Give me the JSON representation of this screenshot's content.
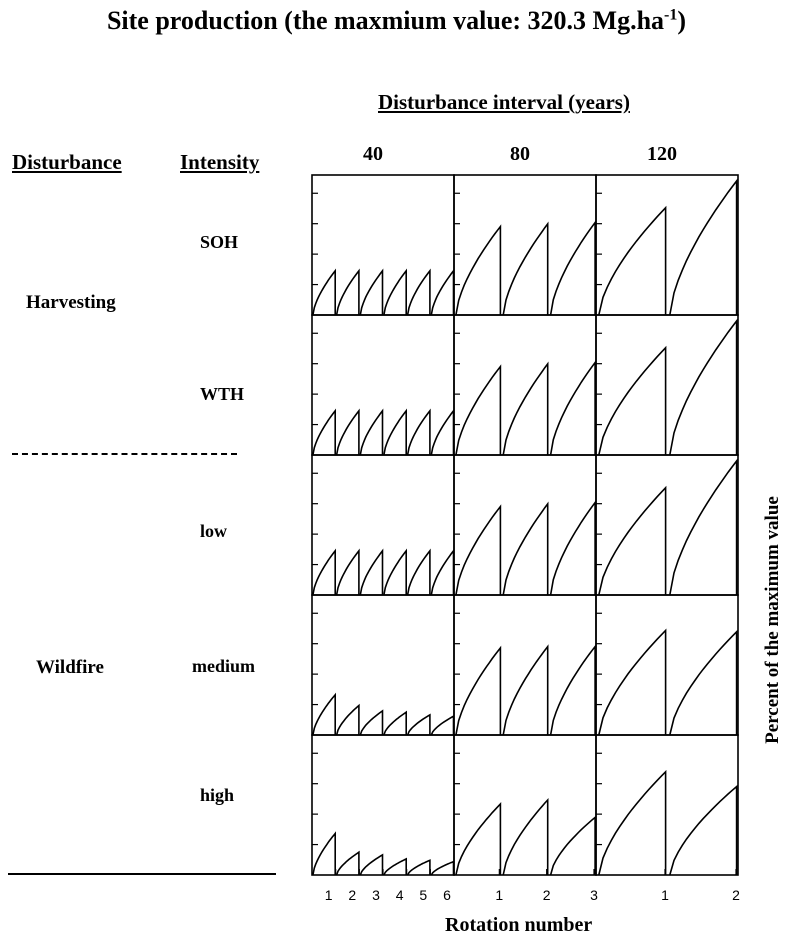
{
  "chart_data": {
    "type": "line",
    "title": "Site production (the maxmium value: 320.3 Mg.ha",
    "title_superscript": "-1",
    "column_header": "Disturbance interval (years)",
    "intervals": [
      "40",
      "80",
      "120"
    ],
    "xlabel": "Rotation number",
    "ylabel": "Percent of the maximum value",
    "row_header_disturbance": "Disturbance",
    "row_header_intensity": "Intensity",
    "disturbances": [
      "Harvesting",
      "Wildfire"
    ],
    "intensities": [
      "SOH",
      "WTH",
      "low",
      "medium",
      "high"
    ],
    "x_tick_labels": [
      [
        "1",
        "2",
        "3",
        "4",
        "5",
        "6"
      ],
      [
        "1",
        "2",
        "3"
      ],
      [
        "1",
        "2"
      ]
    ],
    "rotation_peaks": [
      [
        [
          0.33,
          0.33,
          0.33,
          0.33,
          0.33,
          0.33
        ],
        [
          0.66,
          0.68,
          0.69
        ],
        [
          0.8,
          1.0
        ]
      ],
      [
        [
          0.33,
          0.33,
          0.33,
          0.33,
          0.33,
          0.33
        ],
        [
          0.66,
          0.68,
          0.69
        ],
        [
          0.8,
          1.0
        ]
      ],
      [
        [
          0.33,
          0.33,
          0.33,
          0.33,
          0.33,
          0.33
        ],
        [
          0.66,
          0.68,
          0.69
        ],
        [
          0.8,
          1.0
        ]
      ],
      [
        [
          0.3,
          0.22,
          0.18,
          0.17,
          0.15,
          0.14
        ],
        [
          0.65,
          0.66,
          0.66
        ],
        [
          0.78,
          0.77
        ]
      ],
      [
        [
          0.31,
          0.17,
          0.15,
          0.12,
          0.11,
          0.1
        ],
        [
          0.53,
          0.56,
          0.43
        ],
        [
          0.77,
          0.66
        ]
      ]
    ],
    "ylim": [
      0,
      1
    ]
  }
}
